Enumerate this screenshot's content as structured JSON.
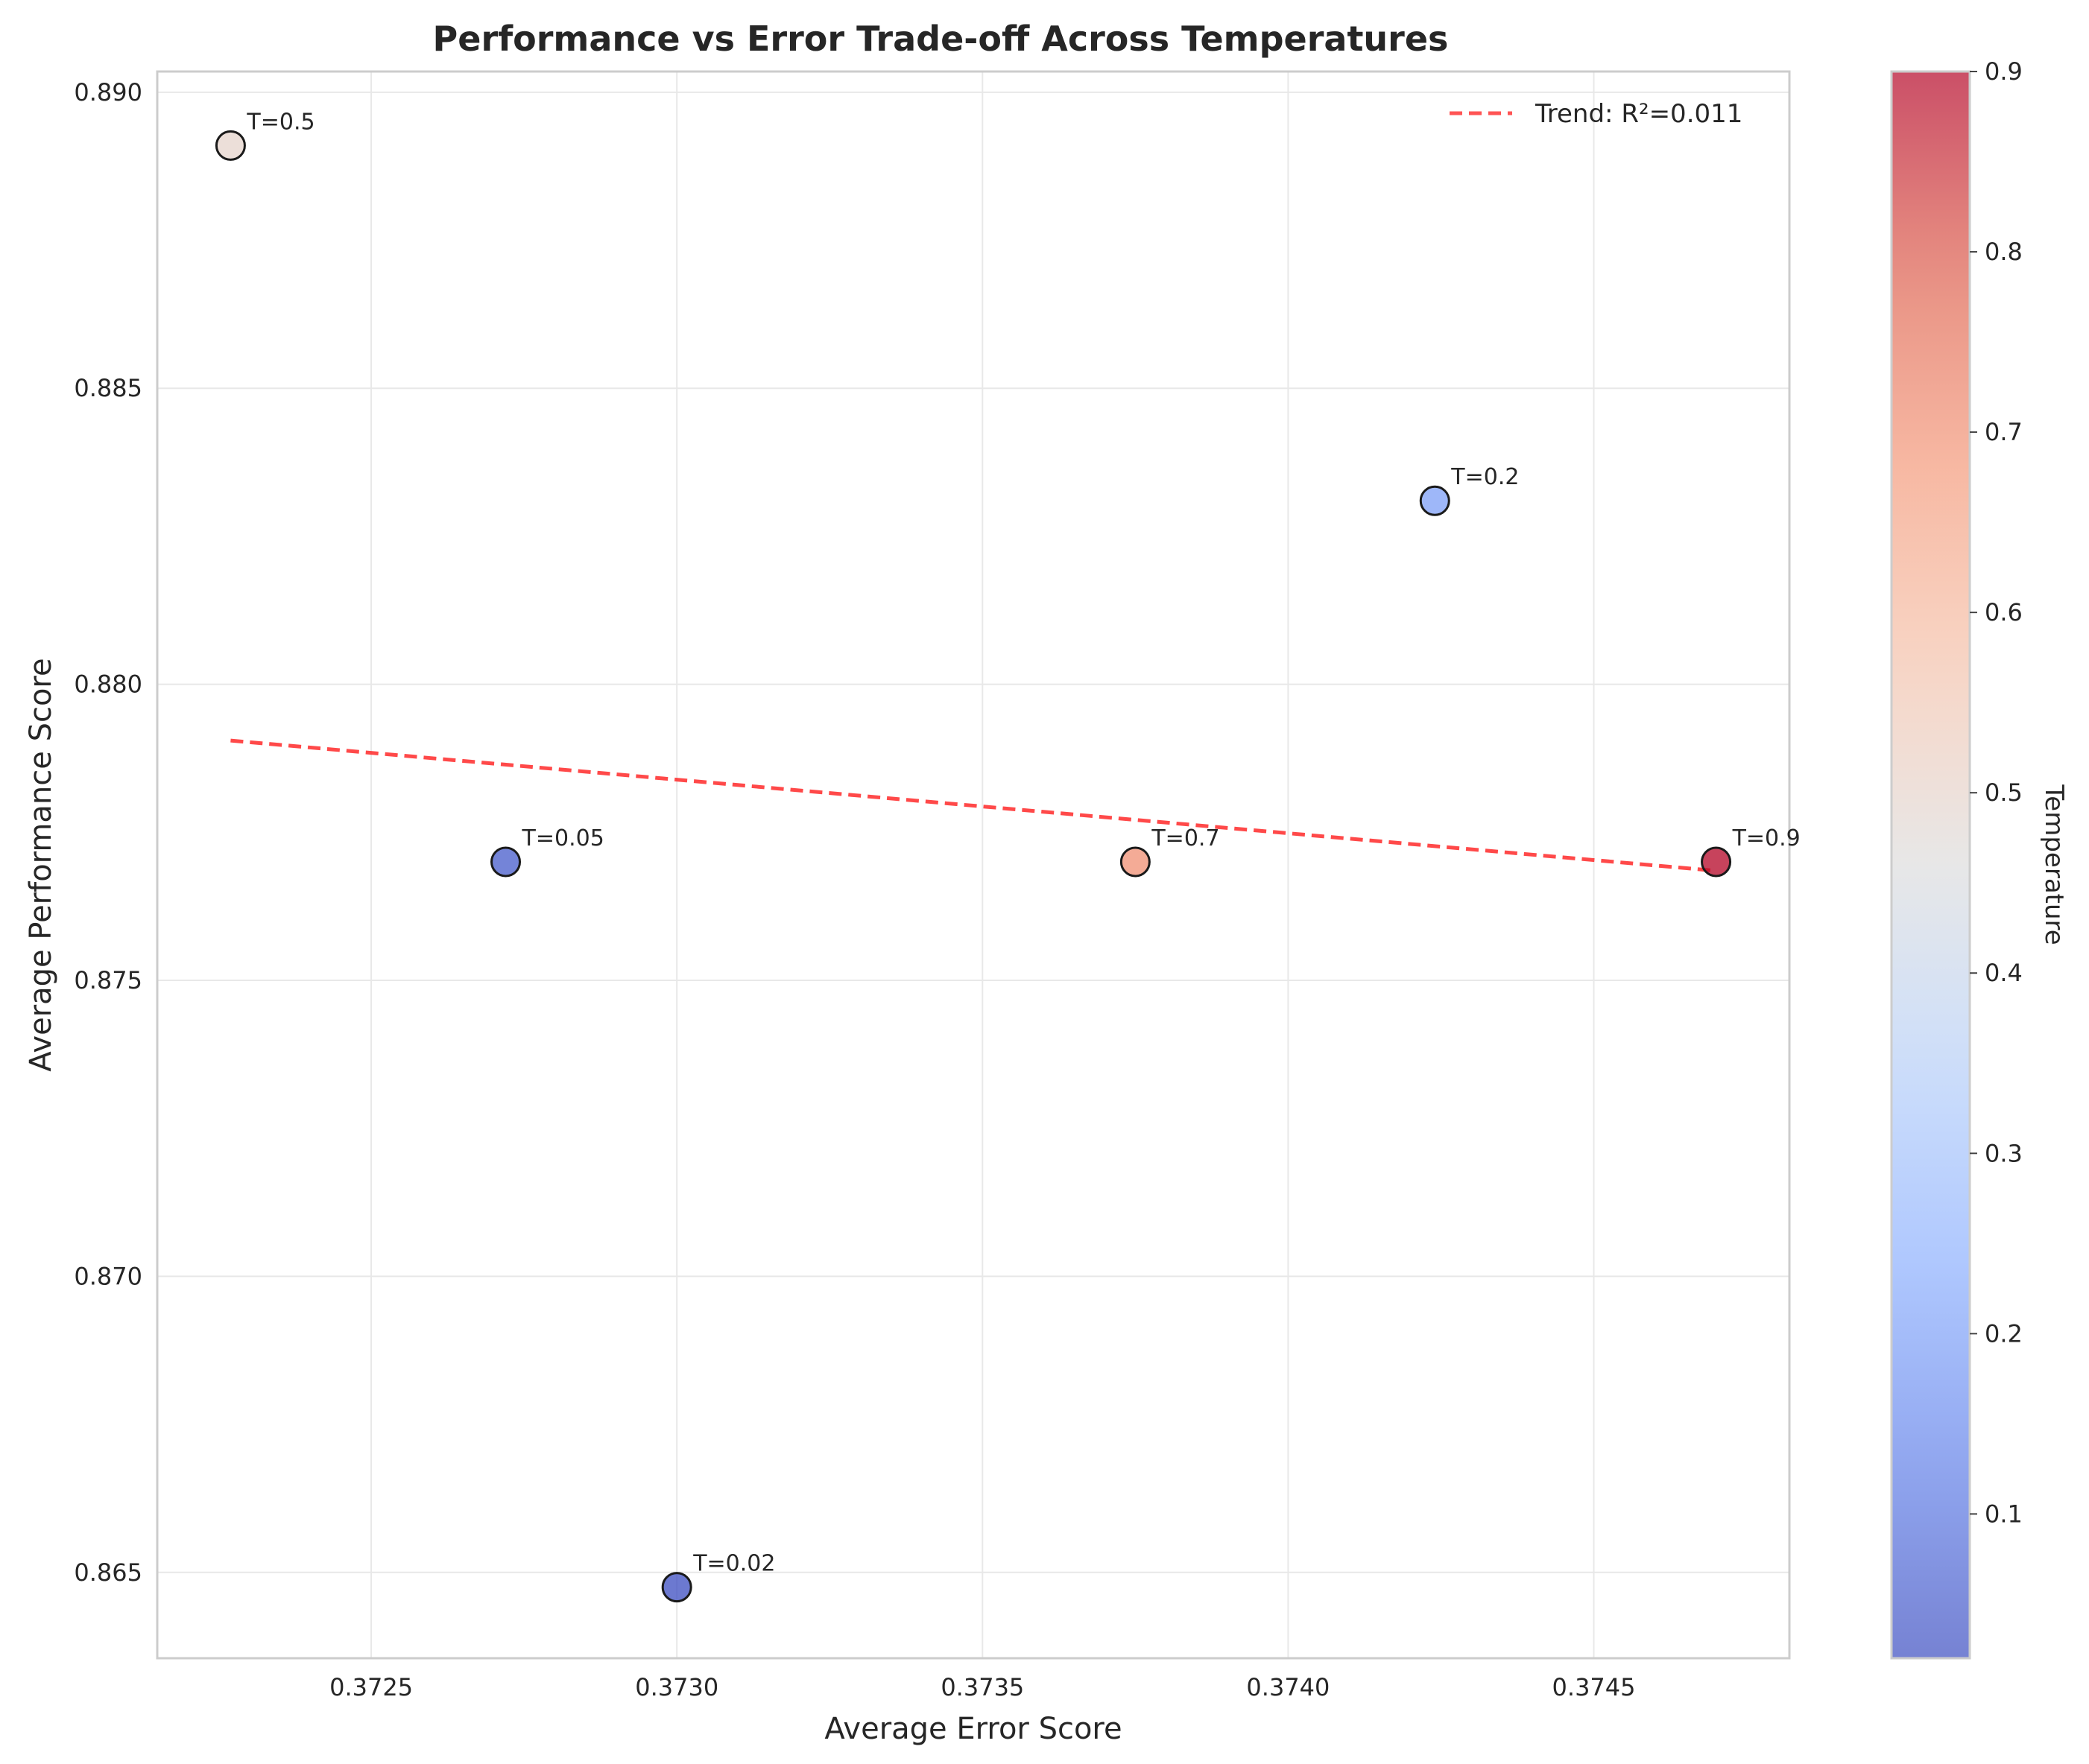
{
  "chart_data": {
    "type": "scatter",
    "title": "Performance vs Error Trade-off Across Temperatures",
    "xlabel": "Average Error Score",
    "ylabel": "Average Performance Score",
    "xlim": [
      0.37215,
      0.37482
    ],
    "ylim": [
      0.86355,
      0.89035
    ],
    "xticks": [
      0.3725,
      0.373,
      0.3735,
      0.374,
      0.3745
    ],
    "xtick_labels": [
      "0.3725",
      "0.3730",
      "0.3735",
      "0.3740",
      "0.3745"
    ],
    "yticks": [
      0.865,
      0.87,
      0.875,
      0.88,
      0.885,
      0.89
    ],
    "ytick_labels": [
      "0.865",
      "0.870",
      "0.875",
      "0.880",
      "0.885",
      "0.890"
    ],
    "grid": true,
    "points": [
      {
        "x": 0.37227,
        "y": 0.8891,
        "temperature": 0.5,
        "label": "T=0.5"
      },
      {
        "x": 0.37272,
        "y": 0.877,
        "temperature": 0.05,
        "label": "T=0.05"
      },
      {
        "x": 0.373,
        "y": 0.86475,
        "temperature": 0.02,
        "label": "T=0.02"
      },
      {
        "x": 0.37375,
        "y": 0.877,
        "temperature": 0.7,
        "label": "T=0.7"
      },
      {
        "x": 0.37424,
        "y": 0.8831,
        "temperature": 0.2,
        "label": "T=0.2"
      },
      {
        "x": 0.3747,
        "y": 0.877,
        "temperature": 0.9,
        "label": "T=0.9"
      }
    ],
    "trend": {
      "label": "Trend: R²=0.011",
      "color": "#ff2a2a",
      "x": [
        0.37227,
        0.3747
      ],
      "y": [
        0.87905,
        0.87685
      ]
    },
    "legend": {
      "position": "top-right"
    },
    "colorbar": {
      "label": "Temperature",
      "cmap": "coolwarm",
      "vmin": 0.02,
      "vmax": 0.9,
      "ticks": [
        0.1,
        0.2,
        0.3,
        0.4,
        0.5,
        0.6,
        0.7,
        0.8,
        0.9
      ],
      "tick_labels": [
        "0.1",
        "0.2",
        "0.3",
        "0.4",
        "0.5",
        "0.6",
        "0.7",
        "0.8",
        "0.9"
      ]
    }
  }
}
